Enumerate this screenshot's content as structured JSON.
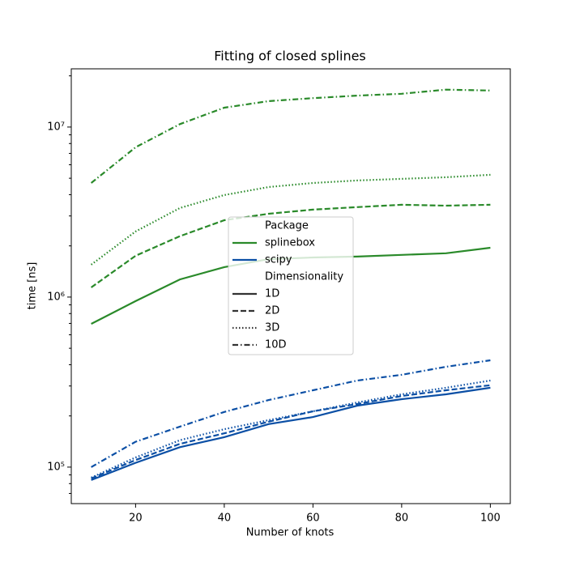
{
  "chart_data": {
    "type": "line",
    "title": "Fitting of closed splines",
    "xlabel": "Number of knots",
    "ylabel": "time [ns]",
    "x": [
      10,
      20,
      30,
      40,
      50,
      60,
      70,
      80,
      90,
      100
    ],
    "xlim": [
      5.5,
      104.5
    ],
    "xticks": [
      20,
      40,
      60,
      80,
      100
    ],
    "ylog": true,
    "ylim": [
      61000,
      22000000
    ],
    "yticks": [
      {
        "value": 100000,
        "label": "10⁵"
      },
      {
        "value": 1000000,
        "label": "10⁶"
      },
      {
        "value": 10000000,
        "label": "10⁷"
      }
    ],
    "yminorticks": [
      70000,
      80000,
      90000,
      200000,
      300000,
      400000,
      500000,
      600000,
      700000,
      800000,
      900000,
      2000000,
      3000000,
      4000000,
      5000000,
      6000000,
      7000000,
      8000000,
      9000000,
      20000000
    ],
    "legend": {
      "position": "center",
      "groups": [
        {
          "title": "Package",
          "entries": [
            {
              "label": "splinebox",
              "color": "#2a8a2a"
            },
            {
              "label": "scipy",
              "color": "#0b4fa5"
            }
          ]
        },
        {
          "title": "Dimensionality",
          "entries": [
            {
              "label": "1D",
              "dash": "solid"
            },
            {
              "label": "2D",
              "dash": "dashed"
            },
            {
              "label": "3D",
              "dash": "dotted"
            },
            {
              "label": "10D",
              "dash": "dashdot"
            }
          ]
        }
      ]
    },
    "series": [
      {
        "package": "splinebox",
        "dimensionality": "1D",
        "values": [
          696000,
          947000,
          1270000,
          1500000,
          1670000,
          1710000,
          1730000,
          1770000,
          1810000,
          1950000
        ]
      },
      {
        "package": "splinebox",
        "dimensionality": "2D",
        "values": [
          1140000,
          1750000,
          2280000,
          2830000,
          3090000,
          3270000,
          3380000,
          3490000,
          3450000,
          3490000
        ]
      },
      {
        "package": "splinebox",
        "dimensionality": "3D",
        "values": [
          1550000,
          2430000,
          3340000,
          3980000,
          4440000,
          4690000,
          4850000,
          4960000,
          5070000,
          5240000
        ]
      },
      {
        "package": "splinebox",
        "dimensionality": "10D",
        "values": [
          4690000,
          7600000,
          10400000,
          13000000,
          14200000,
          14800000,
          15300000,
          15700000,
          16600000,
          16400000
        ]
      },
      {
        "package": "scipy",
        "dimensionality": "1D",
        "values": [
          83900,
          106000,
          131000,
          150000,
          179000,
          197000,
          230000,
          251000,
          268000,
          293000
        ]
      },
      {
        "package": "scipy",
        "dimensionality": "2D",
        "values": [
          85800,
          110000,
          137000,
          158000,
          185000,
          213000,
          235000,
          262000,
          283000,
          303000
        ]
      },
      {
        "package": "scipy",
        "dimensionality": "3D",
        "values": [
          86700,
          114000,
          144000,
          167000,
          189000,
          213000,
          240000,
          268000,
          293000,
          323000
        ]
      },
      {
        "package": "scipy",
        "dimensionality": "10D",
        "values": [
          100000,
          141000,
          173000,
          211000,
          248000,
          283000,
          323000,
          349000,
          389000,
          425000
        ]
      }
    ]
  }
}
